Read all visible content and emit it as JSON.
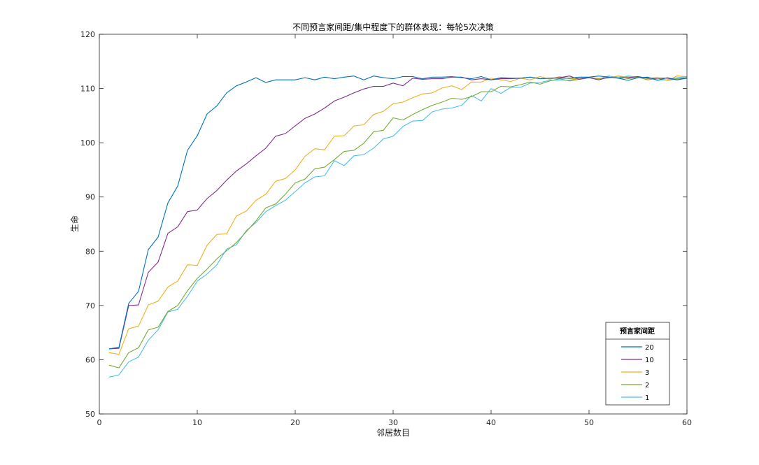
{
  "chart_data": {
    "type": "line",
    "title": "不同预言家间距/集中程度下的群体表现：每轮5次决策",
    "xlabel": "邻居数目",
    "ylabel": "生命",
    "xlim": [
      0,
      60
    ],
    "ylim": [
      50,
      120
    ],
    "xticks": [
      0,
      10,
      20,
      30,
      40,
      50,
      60
    ],
    "yticks": [
      50,
      60,
      70,
      80,
      90,
      100,
      110,
      120
    ],
    "grid": false,
    "legend": {
      "title": "预言家间距",
      "placement": "bottom-right"
    },
    "x": [
      1,
      2,
      3,
      4,
      5,
      6,
      7,
      8,
      9,
      10,
      11,
      12,
      13,
      14,
      15,
      16,
      17,
      18,
      19,
      20,
      21,
      22,
      23,
      24,
      25,
      26,
      27,
      28,
      29,
      30,
      31,
      32,
      33,
      34,
      35,
      36,
      37,
      38,
      39,
      40,
      41,
      42,
      43,
      44,
      45,
      46,
      47,
      48,
      49,
      50,
      51,
      52,
      53,
      54,
      55,
      56,
      57,
      58,
      59,
      60
    ],
    "series": [
      {
        "name": "20",
        "color": "#0072BD",
        "values": [
          62.0,
          62.3,
          70.4,
          72.6,
          80.3,
          82.6,
          88.9,
          92.0,
          98.6,
          101.3,
          105.3,
          106.8,
          109.2,
          110.5,
          111.2,
          112.0,
          111.1,
          111.6,
          111.6,
          111.6,
          112.0,
          111.6,
          112.1,
          111.8,
          112.1,
          112.3,
          111.6,
          112.3,
          112.0,
          111.8,
          112.2,
          112.2,
          111.8,
          112.1,
          112.1,
          112.2,
          112.0,
          111.8,
          112.2,
          111.6,
          112.0,
          111.9,
          111.9,
          112.1,
          111.8,
          111.9,
          111.9,
          111.9,
          112.1,
          112.1,
          112.3,
          112.1,
          111.9,
          111.5,
          112.0,
          112.1,
          111.5,
          112.0,
          111.6,
          111.9
        ]
      },
      {
        "name": "10",
        "color": "#7E2F8E",
        "values": [
          62.0,
          62.1,
          70.0,
          70.1,
          76.1,
          78.0,
          83.3,
          84.5,
          87.3,
          87.6,
          89.7,
          91.2,
          93.1,
          94.8,
          96.1,
          97.6,
          99.0,
          101.2,
          101.7,
          103.1,
          104.5,
          105.3,
          106.4,
          107.7,
          108.4,
          109.2,
          109.9,
          110.4,
          110.4,
          111.0,
          110.5,
          111.9,
          111.7,
          111.8,
          111.8,
          112.1,
          112.1,
          111.6,
          111.8,
          111.6,
          111.8,
          111.8,
          111.9,
          112.1,
          111.8,
          111.9,
          112.0,
          112.3,
          111.7,
          112.0,
          111.6,
          112.1,
          111.9,
          112.0,
          112.2,
          111.9,
          111.9,
          111.9,
          111.6,
          112.0
        ]
      },
      {
        "name": "3",
        "color": "#EDB120",
        "values": [
          61.3,
          61.0,
          65.7,
          66.2,
          70.1,
          70.8,
          73.4,
          74.5,
          77.5,
          77.4,
          81.1,
          83.1,
          83.2,
          86.5,
          87.4,
          89.4,
          90.5,
          92.9,
          93.4,
          95.0,
          97.5,
          98.9,
          98.7,
          101.2,
          101.3,
          103.1,
          103.3,
          105.2,
          105.8,
          107.2,
          107.5,
          108.3,
          109.0,
          109.2,
          110.1,
          110.5,
          109.8,
          111.2,
          111.2,
          111.9,
          111.6,
          111.3,
          111.9,
          111.6,
          112.2,
          111.7,
          112.2,
          111.8,
          111.8,
          112.0,
          111.9,
          111.9,
          112.3,
          112.1,
          112.2,
          111.8,
          112.0,
          111.5,
          112.3,
          112.2
        ]
      },
      {
        "name": "2",
        "color": "#77AC30",
        "values": [
          59.0,
          58.5,
          61.3,
          62.2,
          65.5,
          66.0,
          68.9,
          70.0,
          72.7,
          75.0,
          76.7,
          78.6,
          80.1,
          81.6,
          83.6,
          85.6,
          88.0,
          88.7,
          90.5,
          92.6,
          93.3,
          95.2,
          95.5,
          96.9,
          98.4,
          98.6,
          99.9,
          102.0,
          102.3,
          104.6,
          104.2,
          105.2,
          106.1,
          106.9,
          107.5,
          108.2,
          108.0,
          108.5,
          109.4,
          109.4,
          110.4,
          110.3,
          110.7,
          111.2,
          110.8,
          111.4,
          111.8,
          111.4,
          111.7,
          112.0,
          111.8,
          112.0,
          112.3,
          111.8,
          112.1,
          111.6,
          111.9,
          111.5,
          111.8,
          112.0
        ]
      },
      {
        "name": "1",
        "color": "#4DBEEE",
        "values": [
          56.8,
          57.2,
          59.6,
          60.5,
          63.6,
          65.5,
          68.8,
          69.3,
          71.7,
          74.5,
          75.8,
          77.5,
          80.4,
          81.2,
          83.8,
          85.3,
          87.3,
          88.4,
          89.4,
          91.0,
          92.6,
          93.7,
          93.9,
          96.7,
          95.8,
          97.6,
          97.8,
          99.0,
          100.7,
          101.2,
          103.0,
          104.0,
          104.1,
          105.7,
          106.2,
          106.4,
          106.9,
          108.7,
          107.7,
          110.0,
          109.1,
          110.2,
          110.2,
          111.0,
          111.1,
          111.5,
          111.6,
          111.5,
          111.9,
          112.1,
          111.8,
          112.3,
          112.0,
          112.3,
          112.1,
          111.9,
          111.6,
          111.6,
          112.0,
          112.2
        ]
      }
    ]
  }
}
